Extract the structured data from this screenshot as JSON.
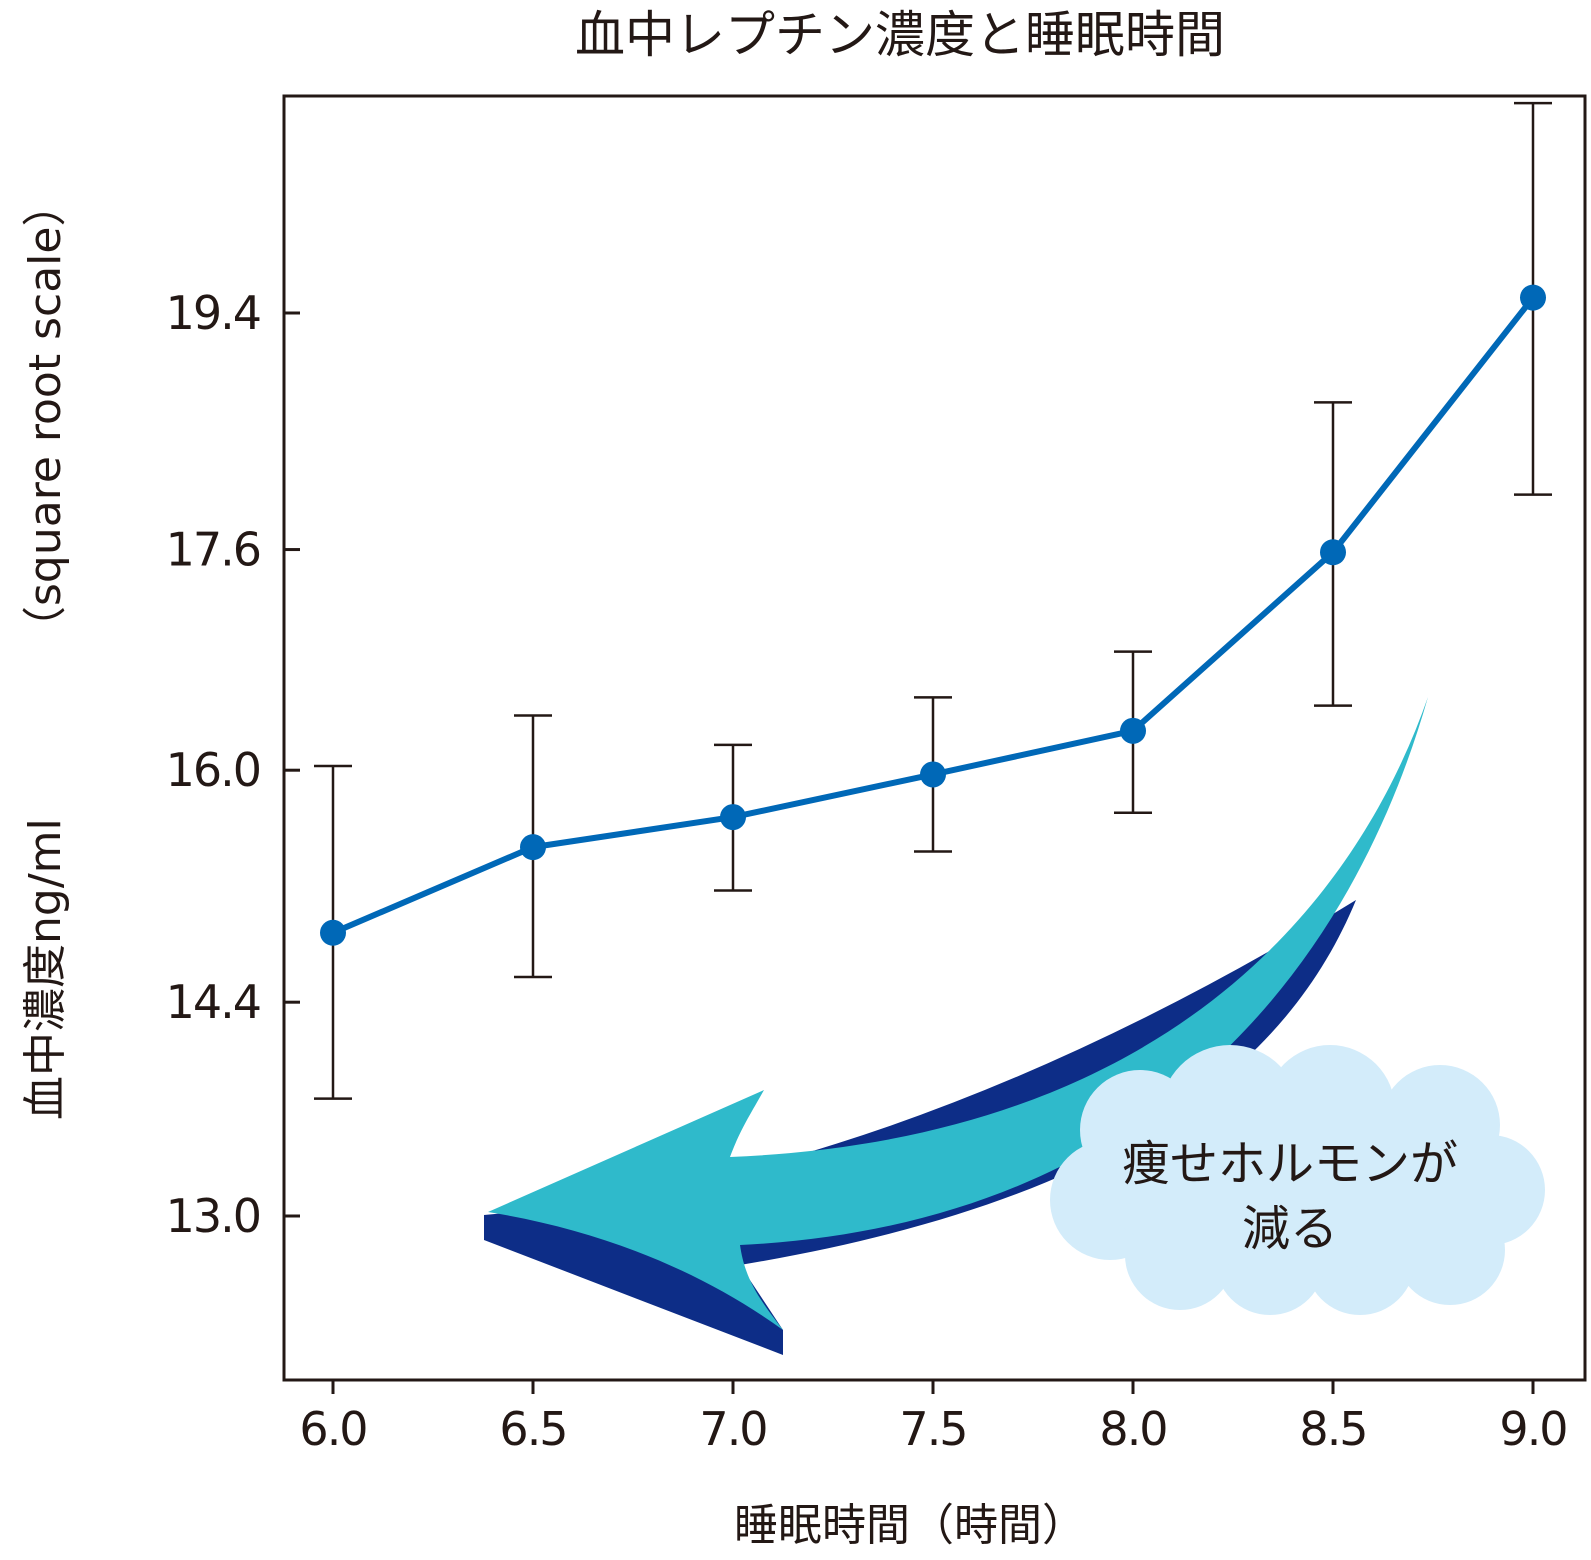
{
  "chart_data": {
    "type": "line",
    "title": "血中レプチン濃度と睡眠時間",
    "xlabel": "睡眠時間（時間）",
    "ylabel_main": "血中濃度ng/ml",
    "ylabel_scale": "（square root scale）",
    "y_scale": "sqrt",
    "x": [
      6.0,
      6.5,
      7.0,
      7.5,
      8.0,
      8.5,
      9.0
    ],
    "x_ticks": [
      "6.0",
      "6.5",
      "7.0",
      "7.5",
      "8.0",
      "8.5",
      "9.0"
    ],
    "y_ticks": [
      13.0,
      14.4,
      16.0,
      17.6,
      19.4
    ],
    "y_tick_labels": [
      "13.0",
      "14.4",
      "16.0",
      "17.6",
      "19.4"
    ],
    "series": [
      {
        "values": [
          14.87,
          15.46,
          15.67,
          15.97,
          16.28,
          17.58,
          19.52
        ],
        "err_low": [
          13.76,
          14.57,
          15.16,
          15.43,
          15.7,
          16.46,
          18.01
        ],
        "err_high": [
          16.03,
          16.39,
          16.18,
          16.52,
          16.85,
          18.71,
          21.07
        ],
        "color": "#0068b7"
      }
    ],
    "grid": false,
    "annotation": {
      "text_line1": "痩せホルモンが",
      "text_line2": "減る",
      "arrow_color": "#2fbacb",
      "arrow_shadow_color": "#0d2d87",
      "cloud_color": "#d3ecfa"
    }
  }
}
